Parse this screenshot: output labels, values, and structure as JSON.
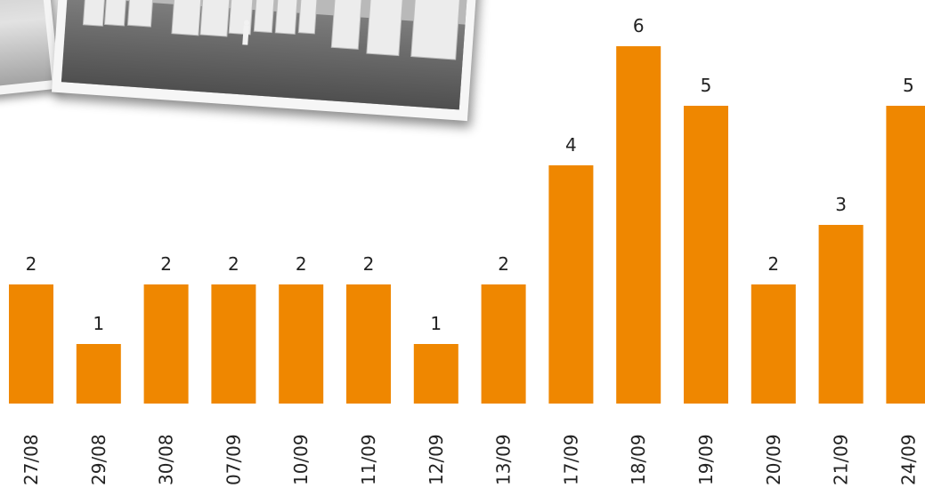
{
  "colors": {
    "bar": "#ef8700",
    "text": "#222222",
    "background": "#ffffff"
  },
  "photos": [
    {
      "name": "exhibition-hall-photo-small",
      "style": "grayscale"
    },
    {
      "name": "exhibition-hall-photo",
      "style": "grayscale"
    }
  ],
  "chart_data": {
    "type": "bar",
    "categories": [
      "27/08",
      "29/08",
      "30/08",
      "07/09",
      "10/09",
      "11/09",
      "12/09",
      "13/09",
      "17/09",
      "18/09",
      "19/09",
      "20/09",
      "21/09",
      "24/09"
    ],
    "values": [
      2,
      1,
      2,
      2,
      2,
      2,
      1,
      2,
      4,
      6,
      5,
      2,
      3,
      5
    ],
    "title": "",
    "xlabel": "",
    "ylabel": "",
    "ylim": [
      0,
      6
    ],
    "grid": false,
    "legend": "none",
    "data_labels": true,
    "x_tick_rotation": -90
  }
}
